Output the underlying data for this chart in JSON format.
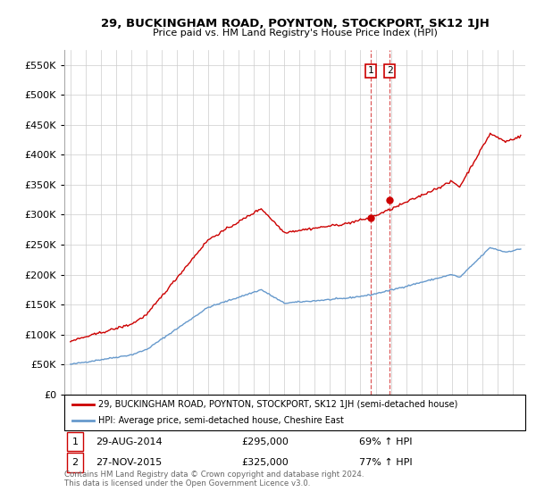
{
  "title": "29, BUCKINGHAM ROAD, POYNTON, STOCKPORT, SK12 1JH",
  "subtitle": "Price paid vs. HM Land Registry's House Price Index (HPI)",
  "legend_line1": "29, BUCKINGHAM ROAD, POYNTON, STOCKPORT, SK12 1JH (semi-detached house)",
  "legend_line2": "HPI: Average price, semi-detached house, Cheshire East",
  "footer": "Contains HM Land Registry data © Crown copyright and database right 2024.\nThis data is licensed under the Open Government Licence v3.0.",
  "transaction1_label": "1",
  "transaction1_date": "29-AUG-2014",
  "transaction1_price": "£295,000",
  "transaction1_hpi": "69% ↑ HPI",
  "transaction2_label": "2",
  "transaction2_date": "27-NOV-2015",
  "transaction2_price": "£325,000",
  "transaction2_hpi": "77% ↑ HPI",
  "red_color": "#cc0000",
  "blue_color": "#6699cc",
  "ylim": [
    0,
    575000
  ],
  "yticks": [
    0,
    50000,
    100000,
    150000,
    200000,
    250000,
    300000,
    350000,
    400000,
    450000,
    500000,
    550000
  ],
  "transaction1_x": 2014.667,
  "transaction1_y": 295000,
  "transaction2_x": 2015.917,
  "transaction2_y": 325000,
  "xlim_left": 1994.6,
  "xlim_right": 2024.8,
  "xtick_years": [
    1995,
    1996,
    1997,
    1998,
    1999,
    2000,
    2001,
    2002,
    2003,
    2004,
    2005,
    2006,
    2007,
    2008,
    2009,
    2010,
    2011,
    2012,
    2013,
    2014,
    2015,
    2016,
    2017,
    2018,
    2019,
    2020,
    2021,
    2022,
    2023,
    2024
  ]
}
